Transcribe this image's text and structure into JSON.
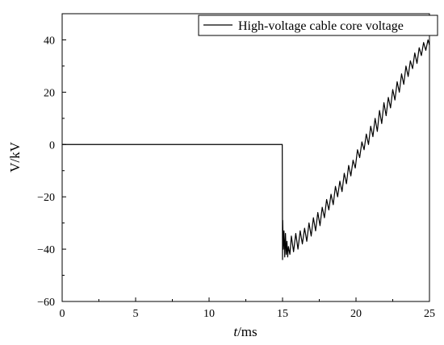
{
  "chart_data": {
    "type": "line",
    "xlabel": {
      "italic": "t",
      "rest": "/ms"
    },
    "ylabel": "V/kV",
    "xlim": [
      0,
      25
    ],
    "ylim": [
      -60,
      50
    ],
    "xticks": [
      0,
      5,
      10,
      15,
      20,
      25
    ],
    "yticks": [
      -60,
      -40,
      -20,
      0,
      20,
      40
    ],
    "grid": false,
    "legend_position": "top-right",
    "series": [
      {
        "name": "High-voltage cable core voltage",
        "color": "#000000",
        "x": [
          0,
          14.98,
          15.0,
          15.01,
          15.05,
          15.1,
          15.15,
          15.2,
          15.25,
          15.3,
          15.35,
          15.4,
          15.5,
          15.6,
          15.75,
          15.9,
          16.05,
          16.2,
          16.35,
          16.5,
          16.65,
          16.8,
          16.95,
          17.1,
          17.25,
          17.4,
          17.55,
          17.7,
          17.85,
          18.0,
          18.15,
          18.3,
          18.45,
          18.6,
          18.75,
          18.9,
          19.05,
          19.2,
          19.35,
          19.5,
          19.65,
          19.8,
          19.95,
          20.1,
          20.25,
          20.4,
          20.55,
          20.7,
          20.85,
          21.0,
          21.15,
          21.3,
          21.45,
          21.6,
          21.75,
          21.9,
          22.05,
          22.2,
          22.35,
          22.5,
          22.65,
          22.8,
          22.95,
          23.1,
          23.25,
          23.4,
          23.55,
          23.7,
          23.85,
          24.0,
          24.15,
          24.3,
          24.45,
          24.6,
          24.75,
          24.9,
          25.0
        ],
        "y": [
          0,
          0,
          -44,
          -29,
          -40,
          -33,
          -43,
          -34,
          -42,
          -37,
          -43,
          -39,
          -42,
          -35,
          -41,
          -34,
          -40,
          -33,
          -38,
          -32,
          -37,
          -30,
          -35,
          -28,
          -33,
          -26,
          -31,
          -24,
          -28,
          -21,
          -25,
          -19,
          -23,
          -16,
          -20,
          -14,
          -18,
          -11,
          -15,
          -8,
          -12,
          -6,
          -9,
          -2,
          -5,
          1,
          -2,
          4,
          0,
          7,
          3,
          10,
          5,
          13,
          8,
          16,
          11,
          18,
          14,
          21,
          17,
          24,
          20,
          27,
          23,
          30,
          26,
          32,
          29,
          35,
          31,
          37,
          34,
          39,
          36,
          40,
          38
        ]
      }
    ]
  }
}
